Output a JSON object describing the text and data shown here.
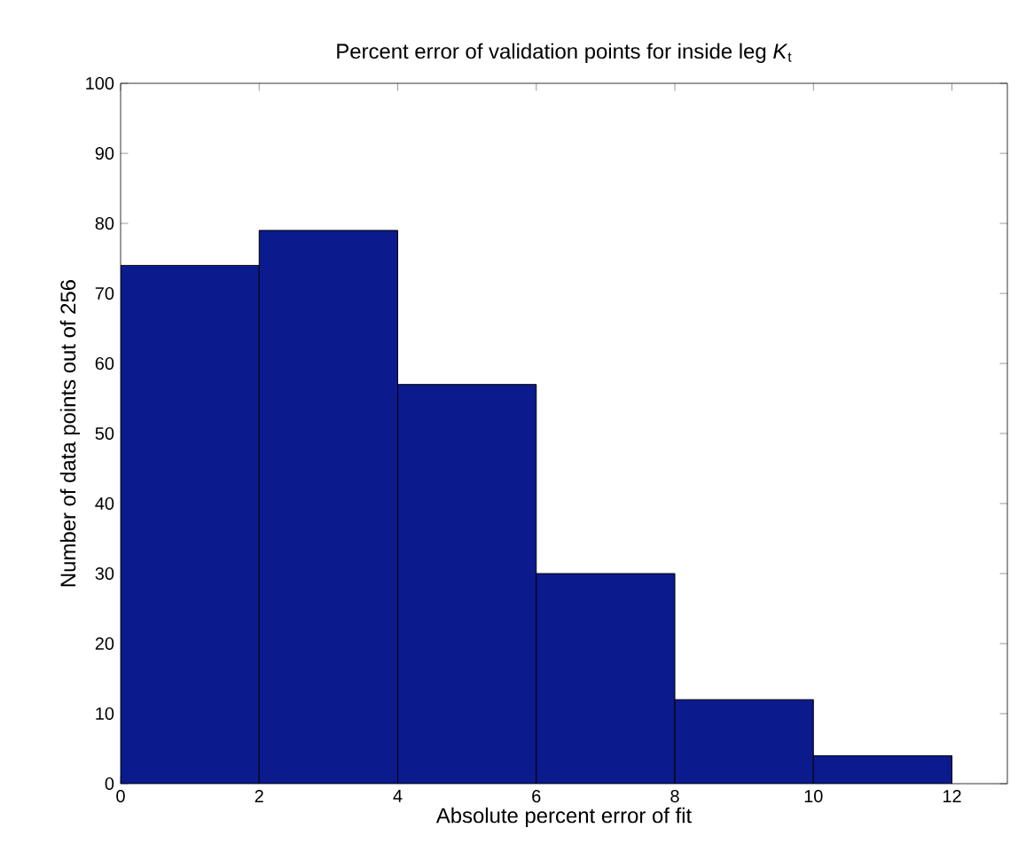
{
  "chart_data": {
    "type": "histogram",
    "title": "Percent error of validation points for inside leg *K*$_{t}$",
    "xlabel": "Absolute percent error of fit",
    "ylabel": "Number of data points out of 256",
    "bins": [
      0,
      2,
      4,
      6,
      8,
      10,
      12
    ],
    "values": [
      74,
      79,
      57,
      30,
      12,
      4
    ],
    "color": "#0b1a8c",
    "xlim": [
      0,
      12.8
    ],
    "ylim": [
      0,
      100
    ],
    "xticks": [
      0,
      2,
      4,
      6,
      8,
      10,
      12
    ],
    "yticks": [
      0,
      10,
      20,
      30,
      40,
      50,
      60,
      70,
      80,
      90,
      100
    ],
    "grid": false
  }
}
